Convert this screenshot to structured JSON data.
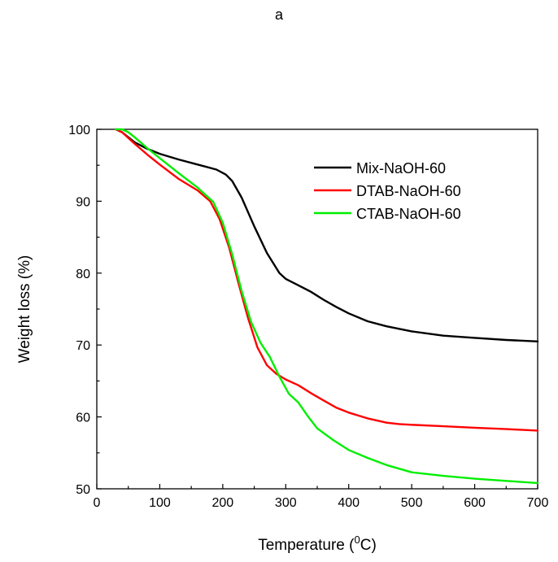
{
  "panel_label": "a",
  "chart_data": {
    "type": "line",
    "title": "",
    "xlabel": "Temperature (",
    "xlabel_sup": "0",
    "xlabel_suffix": "C)",
    "ylabel": "Weight loss (%)",
    "xlim": [
      0,
      700
    ],
    "ylim": [
      50,
      100
    ],
    "xticks": [
      0,
      100,
      200,
      300,
      400,
      500,
      600,
      700
    ],
    "yticks": [
      50,
      60,
      70,
      80,
      90,
      100
    ],
    "grid": false,
    "legend_position": "top-right",
    "series": [
      {
        "name": "Mix-NaOH-60",
        "color": "#000000",
        "x": [
          30,
          40,
          60,
          80,
          100,
          130,
          160,
          190,
          205,
          215,
          230,
          250,
          270,
          290,
          300,
          320,
          340,
          360,
          380,
          400,
          430,
          460,
          500,
          550,
          600,
          650,
          700
        ],
        "y": [
          100,
          99.6,
          98.2,
          97.3,
          96.6,
          95.8,
          95.1,
          94.4,
          93.7,
          92.8,
          90.5,
          86.5,
          82.8,
          80.0,
          79.2,
          78.3,
          77.4,
          76.3,
          75.3,
          74.4,
          73.3,
          72.6,
          71.9,
          71.3,
          71.0,
          70.7,
          70.5
        ]
      },
      {
        "name": "DTAB-NaOH-60",
        "color": "#ff0000",
        "x": [
          30,
          40,
          60,
          80,
          100,
          130,
          160,
          180,
          195,
          210,
          225,
          240,
          255,
          270,
          285,
          300,
          320,
          340,
          360,
          380,
          400,
          430,
          460,
          480,
          500,
          550,
          600,
          650,
          700
        ],
        "y": [
          100,
          99.6,
          98.0,
          96.5,
          95.1,
          93.1,
          91.5,
          90.0,
          87.5,
          83.6,
          78.6,
          73.8,
          69.7,
          67.2,
          66.0,
          65.2,
          64.4,
          63.3,
          62.3,
          61.3,
          60.6,
          59.8,
          59.2,
          59.0,
          58.9,
          58.7,
          58.5,
          58.3,
          58.1
        ]
      },
      {
        "name": "CTAB-NaOH-60",
        "color": "#00ee00",
        "x": [
          30,
          40,
          50,
          60,
          80,
          100,
          130,
          160,
          185,
          200,
          215,
          230,
          245,
          260,
          275,
          290,
          305,
          320,
          335,
          350,
          375,
          400,
          430,
          460,
          500,
          550,
          600,
          650,
          700
        ],
        "y": [
          100,
          100,
          99.6,
          98.9,
          97.4,
          96.0,
          93.9,
          91.9,
          89.9,
          87.0,
          82.6,
          77.5,
          73.2,
          70.3,
          68.3,
          65.6,
          63.2,
          62.0,
          60.1,
          58.4,
          56.8,
          55.4,
          54.3,
          53.3,
          52.3,
          51.8,
          51.4,
          51.1,
          50.8
        ]
      }
    ]
  }
}
